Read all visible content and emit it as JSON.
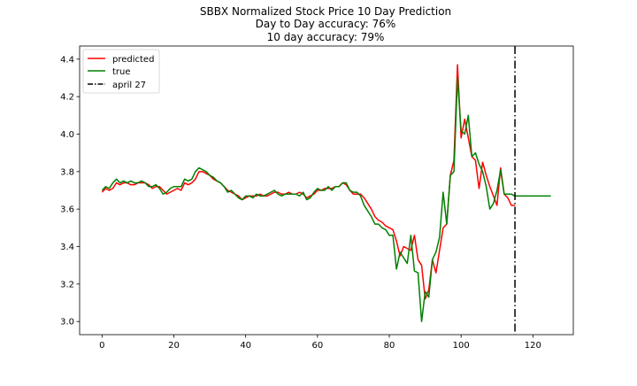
{
  "chart_data": {
    "type": "line",
    "title": [
      "SBBX Normalized Stock Price 10 Day Prediction",
      "Day to Day accuracy: 76%",
      "10 day accuracy: 79%"
    ],
    "xlabel": "",
    "ylabel": "",
    "xlim": [
      -6.25,
      131.25
    ],
    "ylim": [
      2.93,
      4.47
    ],
    "xticks": [
      0,
      20,
      40,
      60,
      80,
      100,
      120
    ],
    "yticks": [
      3.0,
      3.2,
      3.4,
      3.6,
      3.8,
      4.0,
      4.2,
      4.4
    ],
    "legend_position": "top-left",
    "series": [
      {
        "name": "predicted",
        "color": "#ff0000",
        "x": [
          0,
          1,
          2,
          3,
          4,
          5,
          6,
          7,
          8,
          9,
          10,
          11,
          12,
          13,
          14,
          15,
          16,
          17,
          18,
          19,
          20,
          21,
          22,
          23,
          24,
          25,
          26,
          27,
          28,
          29,
          30,
          31,
          32,
          33,
          34,
          35,
          36,
          37,
          38,
          39,
          40,
          41,
          42,
          43,
          44,
          45,
          46,
          47,
          48,
          49,
          50,
          51,
          52,
          53,
          54,
          55,
          56,
          57,
          58,
          59,
          60,
          61,
          62,
          63,
          64,
          65,
          66,
          67,
          68,
          69,
          70,
          71,
          72,
          73,
          74,
          75,
          76,
          77,
          78,
          79,
          80,
          81,
          82,
          83,
          84,
          85,
          86,
          87,
          88,
          89,
          90,
          91,
          92,
          93,
          94,
          95,
          96,
          97,
          98,
          99,
          100,
          101,
          102,
          103,
          104,
          105,
          106,
          107,
          108,
          109,
          110,
          111,
          112,
          113,
          114,
          115
        ],
        "values": [
          3.69,
          3.71,
          3.7,
          3.71,
          3.74,
          3.73,
          3.74,
          3.74,
          3.73,
          3.73,
          3.74,
          3.74,
          3.74,
          3.73,
          3.71,
          3.72,
          3.72,
          3.7,
          3.68,
          3.69,
          3.7,
          3.71,
          3.7,
          3.74,
          3.73,
          3.74,
          3.76,
          3.8,
          3.8,
          3.79,
          3.78,
          3.76,
          3.75,
          3.74,
          3.72,
          3.7,
          3.69,
          3.68,
          3.67,
          3.65,
          3.66,
          3.67,
          3.67,
          3.67,
          3.68,
          3.67,
          3.67,
          3.68,
          3.69,
          3.69,
          3.68,
          3.68,
          3.69,
          3.68,
          3.68,
          3.69,
          3.68,
          3.66,
          3.67,
          3.68,
          3.7,
          3.7,
          3.71,
          3.71,
          3.71,
          3.72,
          3.72,
          3.74,
          3.73,
          3.7,
          3.68,
          3.68,
          3.68,
          3.66,
          3.63,
          3.6,
          3.56,
          3.54,
          3.53,
          3.51,
          3.5,
          3.49,
          3.43,
          3.35,
          3.4,
          3.39,
          3.38,
          3.46,
          3.33,
          3.3,
          3.12,
          3.17,
          3.33,
          3.26,
          3.38,
          3.5,
          3.52,
          3.78,
          3.86,
          4.37,
          3.98,
          4.08,
          3.98,
          3.88,
          3.86,
          3.71,
          3.85,
          3.78,
          3.72,
          3.67,
          3.62,
          3.82,
          3.68,
          3.66,
          3.62,
          3.62
        ]
      },
      {
        "name": "true",
        "color": "#008000",
        "x": [
          0,
          1,
          2,
          3,
          4,
          5,
          6,
          7,
          8,
          9,
          10,
          11,
          12,
          13,
          14,
          15,
          16,
          17,
          18,
          19,
          20,
          21,
          22,
          23,
          24,
          25,
          26,
          27,
          28,
          29,
          30,
          31,
          32,
          33,
          34,
          35,
          36,
          37,
          38,
          39,
          40,
          41,
          42,
          43,
          44,
          45,
          46,
          47,
          48,
          49,
          50,
          51,
          52,
          53,
          54,
          55,
          56,
          57,
          58,
          59,
          60,
          61,
          62,
          63,
          64,
          65,
          66,
          67,
          68,
          69,
          70,
          71,
          72,
          73,
          74,
          75,
          76,
          77,
          78,
          79,
          80,
          81,
          82,
          83,
          84,
          85,
          86,
          87,
          88,
          89,
          90,
          91,
          92,
          93,
          94,
          95,
          96,
          97,
          98,
          99,
          100,
          101,
          102,
          103,
          104,
          105,
          106,
          107,
          108,
          109,
          110,
          111,
          112,
          113,
          114,
          115,
          116,
          117,
          118,
          119,
          120,
          121,
          122,
          123,
          124,
          125
        ],
        "values": [
          3.7,
          3.72,
          3.71,
          3.74,
          3.76,
          3.74,
          3.75,
          3.74,
          3.75,
          3.74,
          3.74,
          3.75,
          3.74,
          3.72,
          3.72,
          3.73,
          3.71,
          3.68,
          3.69,
          3.71,
          3.72,
          3.72,
          3.72,
          3.76,
          3.75,
          3.76,
          3.8,
          3.82,
          3.81,
          3.8,
          3.78,
          3.77,
          3.75,
          3.74,
          3.72,
          3.69,
          3.7,
          3.68,
          3.66,
          3.65,
          3.67,
          3.67,
          3.66,
          3.68,
          3.67,
          3.67,
          3.68,
          3.69,
          3.7,
          3.68,
          3.67,
          3.68,
          3.68,
          3.68,
          3.68,
          3.67,
          3.69,
          3.65,
          3.66,
          3.69,
          3.71,
          3.7,
          3.7,
          3.72,
          3.7,
          3.72,
          3.72,
          3.74,
          3.74,
          3.7,
          3.69,
          3.69,
          3.67,
          3.62,
          3.59,
          3.56,
          3.52,
          3.52,
          3.5,
          3.49,
          3.46,
          3.46,
          3.28,
          3.37,
          3.34,
          3.31,
          3.46,
          3.27,
          3.26,
          3.0,
          3.16,
          3.13,
          3.33,
          3.37,
          3.45,
          3.69,
          3.52,
          3.78,
          3.8,
          4.3,
          4.02,
          4.0,
          4.1,
          3.88,
          3.9,
          3.84,
          3.8,
          3.72,
          3.6,
          3.63,
          3.7,
          3.81,
          3.68,
          3.68,
          3.68,
          3.67,
          3.67,
          3.67,
          3.67,
          3.67,
          3.67,
          3.67,
          3.67,
          3.67,
          3.67,
          3.67
        ]
      }
    ],
    "vline": {
      "name": "april 27",
      "x": 115,
      "color": "#000000",
      "style": "dash-dot"
    }
  }
}
